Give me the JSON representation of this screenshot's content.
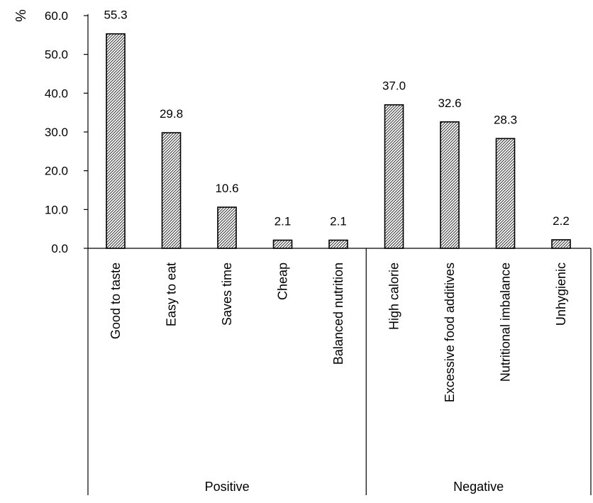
{
  "chart_data": {
    "type": "bar",
    "ylabel": "%",
    "ylim": [
      0,
      60
    ],
    "yticks": [
      "0.0",
      "10.0",
      "20.0",
      "30.0",
      "40.0",
      "50.0",
      "60.0"
    ],
    "categories": [
      "Good to taste",
      "Easy to eat",
      "Saves time",
      "Cheap",
      "Balanced nutrition",
      "High calorie",
      "Excessive food additives",
      "Nutritional imbalance",
      "Unhygienic"
    ],
    "values": [
      55.3,
      29.8,
      10.6,
      2.1,
      2.1,
      37.0,
      32.6,
      28.3,
      2.2
    ],
    "value_labels": [
      "55.3",
      "29.8",
      "10.6",
      "2.1",
      "2.1",
      "37.0",
      "32.6",
      "28.3",
      "2.2"
    ],
    "groups": [
      {
        "label": "Positive",
        "count": 5
      },
      {
        "label": "Negative",
        "count": 4
      }
    ],
    "bar_fill": "hatched",
    "grid": false,
    "legend": "none"
  }
}
